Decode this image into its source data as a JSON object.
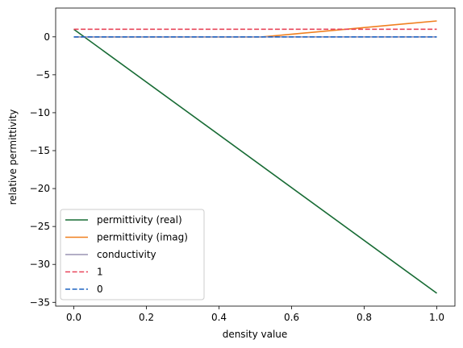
{
  "chart_data": {
    "type": "line",
    "title": "",
    "xlabel": "density value",
    "ylabel": "relative permittivity",
    "xlim": [
      -0.05,
      1.05
    ],
    "ylim": [
      -35.5,
      3.8
    ],
    "xticks": [
      0.0,
      0.2,
      0.4,
      0.6,
      0.8,
      1.0
    ],
    "xtick_labels": [
      "0.0",
      "0.2",
      "0.4",
      "0.6",
      "0.8",
      "1.0"
    ],
    "yticks": [
      0,
      -5,
      -10,
      -15,
      -20,
      -25,
      -30,
      -35
    ],
    "ytick_labels": [
      "0",
      "−5",
      "−10",
      "−15",
      "−20",
      "−25",
      "−30",
      "−35"
    ],
    "grid": false,
    "legend_location": "lower-left",
    "series": [
      {
        "name": "permittivity (real)",
        "color": "#176b34",
        "dash": "solid",
        "x": [
          0.0,
          1.0
        ],
        "y": [
          1.0,
          -33.8
        ]
      },
      {
        "name": "permittivity (imag)",
        "color": "#f07f1e",
        "dash": "solid",
        "x": [
          0.0,
          0.52,
          1.0
        ],
        "y": [
          0.0,
          0.0,
          2.1
        ]
      },
      {
        "name": "conductivity",
        "color": "#9a93b3",
        "dash": "solid",
        "x": [
          0.0,
          1.0
        ],
        "y": [
          0.0,
          0.0
        ]
      },
      {
        "name": "1",
        "color": "#e8465a",
        "dash": "dashed",
        "x": [
          0.0,
          1.0
        ],
        "y": [
          1.0,
          1.0
        ]
      },
      {
        "name": "0",
        "color": "#1f63c2",
        "dash": "dashed",
        "x": [
          0.0,
          1.0
        ],
        "y": [
          0.0,
          0.0
        ]
      }
    ]
  }
}
